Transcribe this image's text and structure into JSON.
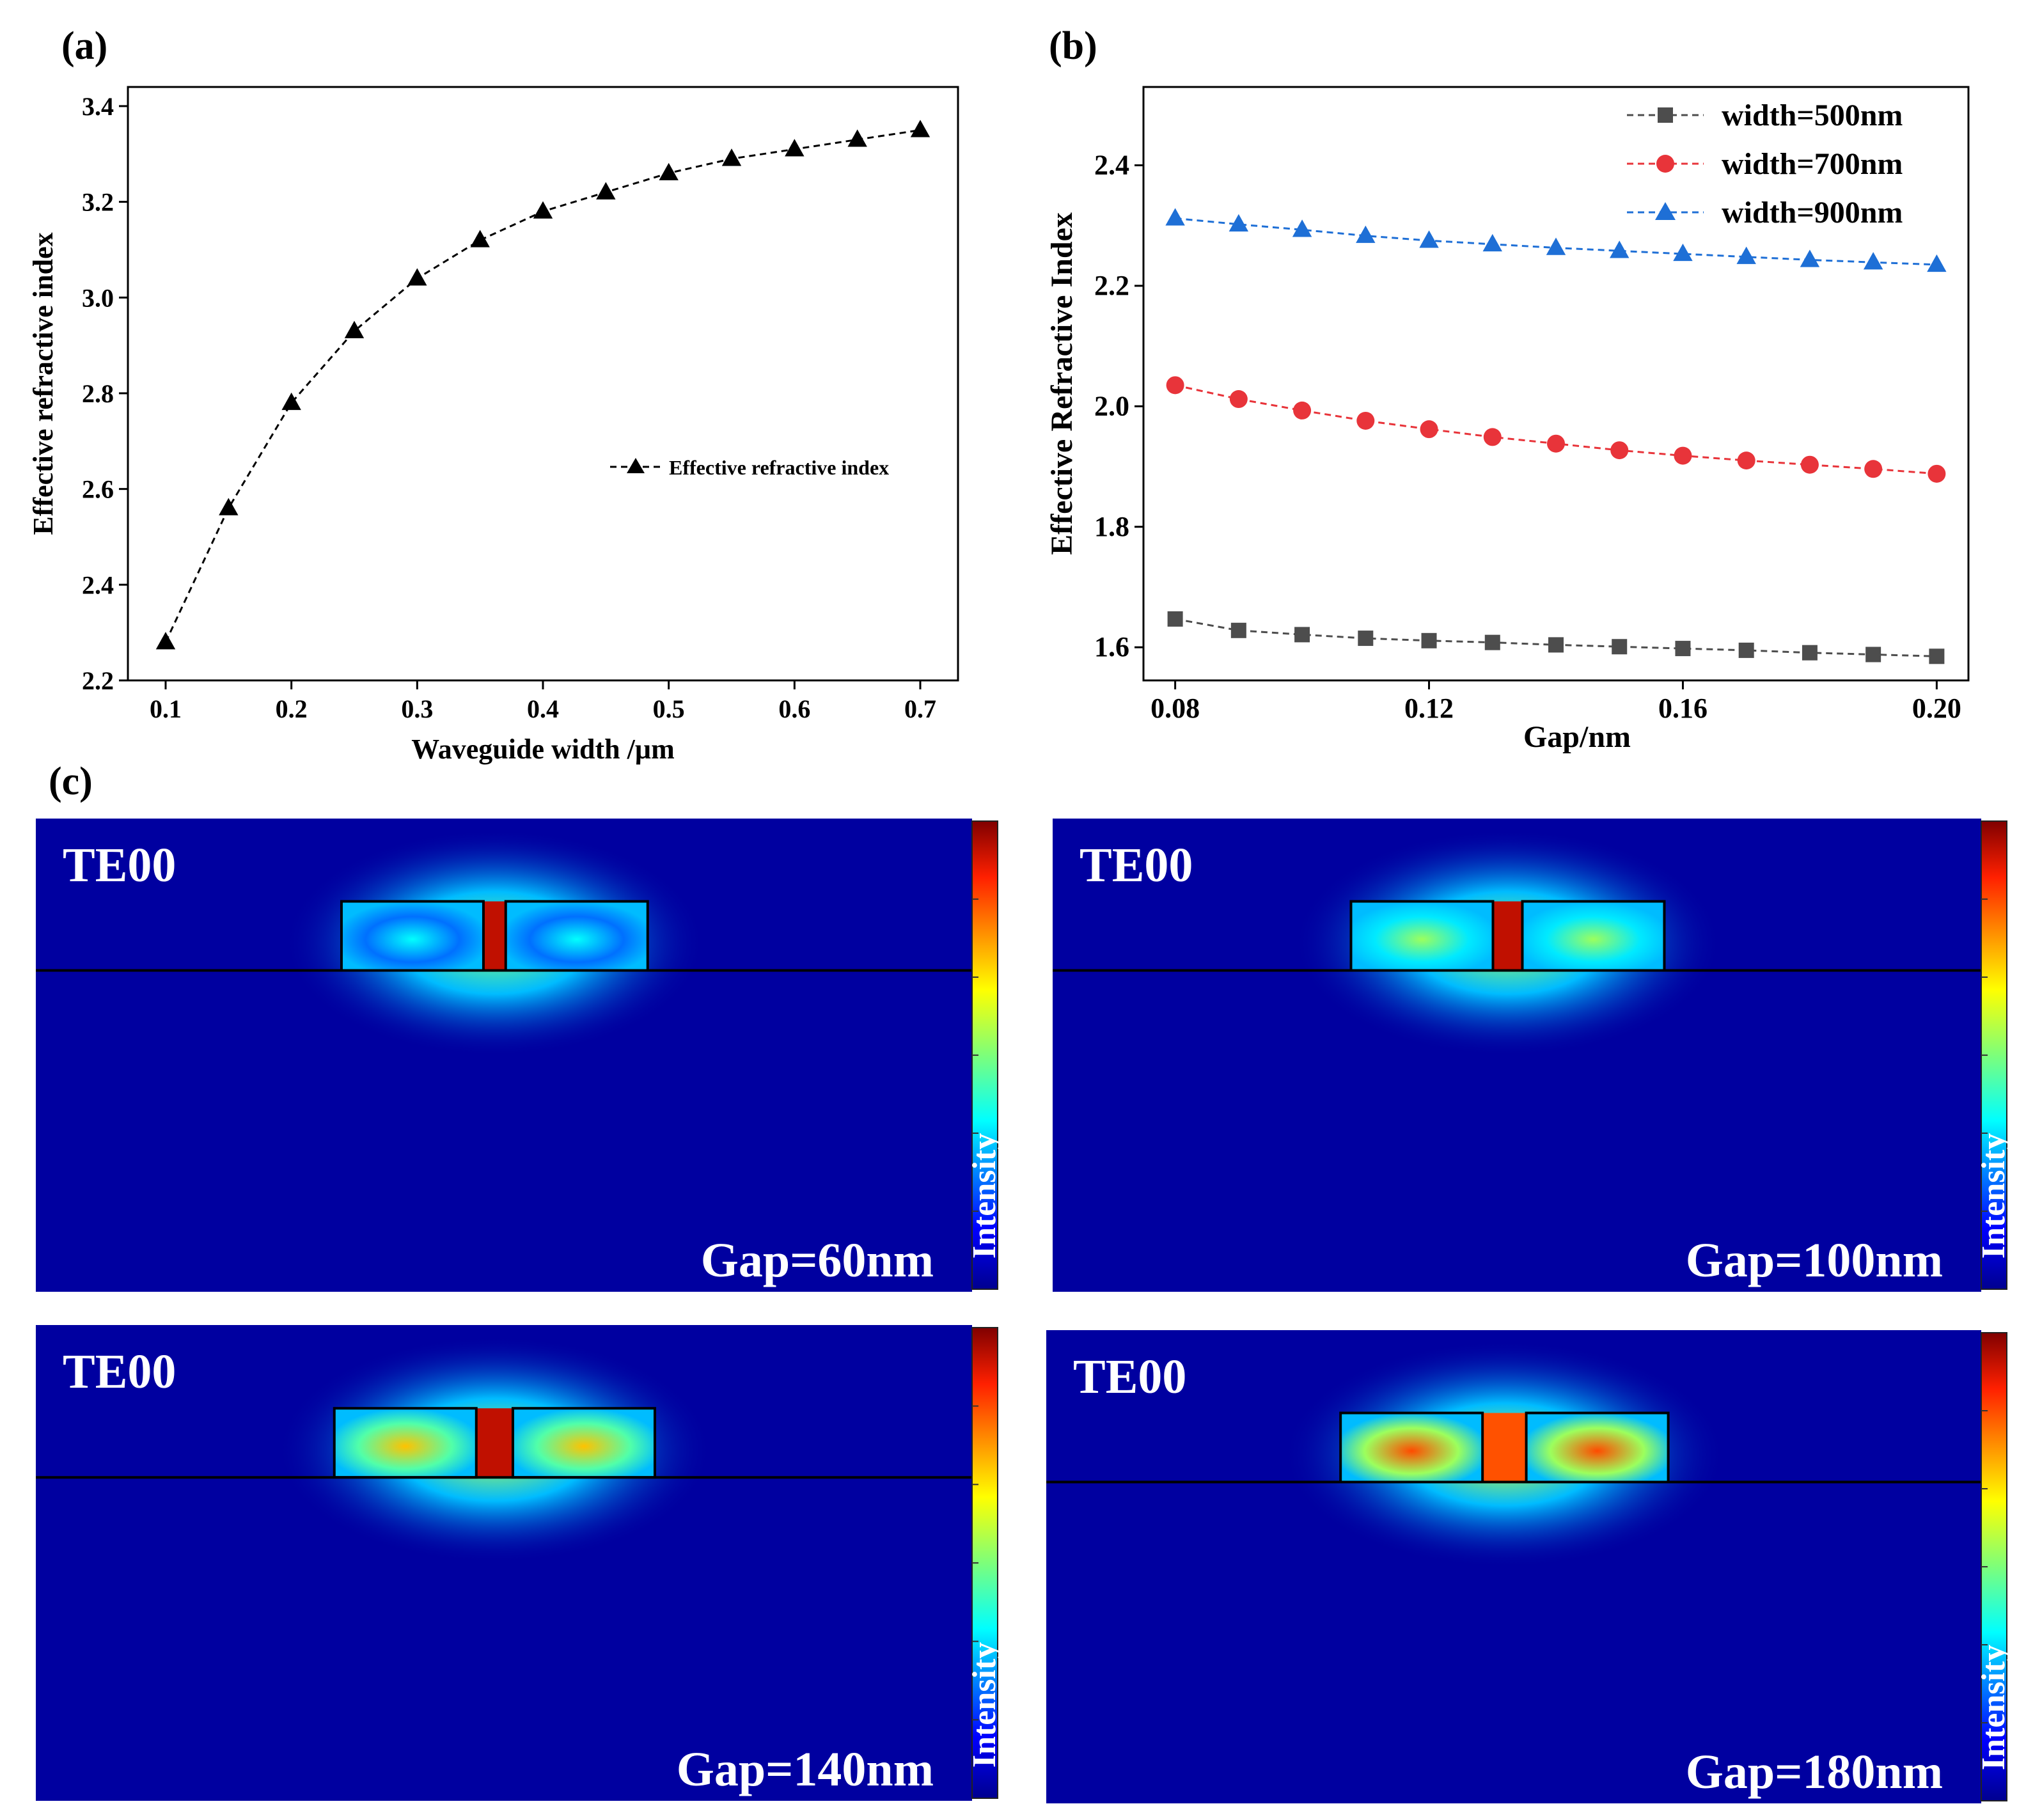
{
  "panel_labels": {
    "a": "(a)",
    "b": "(b)",
    "c": "(c)"
  },
  "colors": {
    "black": "#000000",
    "gray": "#4d4d4d",
    "red": "#e8343a",
    "blue": "#1e6fd6",
    "navy": "#0a0f9c"
  },
  "chart_data": [
    {
      "type": "line",
      "panel": "a",
      "xlabel": "Waveguide width /µm",
      "ylabel": "Effective refractive index",
      "xlim": [
        0.07,
        0.73
      ],
      "ylim": [
        2.2,
        3.44
      ],
      "xticks": [
        0.1,
        0.2,
        0.3,
        0.4,
        0.5,
        0.6,
        0.7
      ],
      "xtick_labels": [
        "0.1",
        "0.2",
        "0.3",
        "0.4",
        "0.5",
        "0.6",
        "0.7"
      ],
      "yticks": [
        2.2,
        2.4,
        2.6,
        2.8,
        3.0,
        3.2,
        3.4
      ],
      "ytick_labels": [
        "2.2",
        "2.4",
        "2.6",
        "2.8",
        "3.0",
        "3.2",
        "3.4"
      ],
      "legend_position": "center-right",
      "series": [
        {
          "name": "Effective refractive index",
          "marker": "triangle",
          "color": "#000000",
          "x": [
            0.1,
            0.15,
            0.2,
            0.25,
            0.3,
            0.35,
            0.4,
            0.45,
            0.5,
            0.55,
            0.6,
            0.65,
            0.7
          ],
          "y": [
            2.28,
            2.56,
            2.78,
            2.93,
            3.04,
            3.12,
            3.18,
            3.22,
            3.26,
            3.29,
            3.31,
            3.33,
            3.35
          ]
        }
      ]
    },
    {
      "type": "line",
      "panel": "b",
      "xlabel": "Gap/nm",
      "ylabel": "Effective Refractive Index",
      "xlim": [
        0.075,
        0.205
      ],
      "ylim": [
        1.545,
        2.53
      ],
      "xticks": [
        0.08,
        0.12,
        0.16,
        0.2
      ],
      "xtick_labels": [
        "0.08",
        "0.12",
        "0.16",
        "0.20"
      ],
      "yticks": [
        1.6,
        1.8,
        2.0,
        2.2,
        2.4
      ],
      "ytick_labels": [
        "1.6",
        "1.8",
        "2.0",
        "2.2",
        "2.4"
      ],
      "legend_position": "top-right",
      "series": [
        {
          "name": "width=500nm",
          "marker": "square",
          "color": "#4d4d4d",
          "x": [
            0.08,
            0.09,
            0.1,
            0.11,
            0.12,
            0.13,
            0.14,
            0.15,
            0.16,
            0.17,
            0.18,
            0.19,
            0.2
          ],
          "y": [
            1.647,
            1.628,
            1.621,
            1.615,
            1.611,
            1.608,
            1.604,
            1.601,
            1.598,
            1.595,
            1.591,
            1.588,
            1.585
          ]
        },
        {
          "name": "width=700nm",
          "marker": "circle",
          "color": "#e8343a",
          "x": [
            0.08,
            0.09,
            0.1,
            0.11,
            0.12,
            0.13,
            0.14,
            0.15,
            0.16,
            0.17,
            0.18,
            0.19,
            0.2
          ],
          "y": [
            2.035,
            2.012,
            1.993,
            1.976,
            1.962,
            1.949,
            1.938,
            1.927,
            1.918,
            1.91,
            1.903,
            1.896,
            1.888
          ]
        },
        {
          "name": "width=900nm",
          "marker": "triangle",
          "color": "#1e6fd6",
          "x": [
            0.08,
            0.09,
            0.1,
            0.11,
            0.12,
            0.13,
            0.14,
            0.15,
            0.16,
            0.17,
            0.18,
            0.19,
            0.2
          ],
          "y": [
            2.312,
            2.302,
            2.293,
            2.283,
            2.275,
            2.269,
            2.263,
            2.258,
            2.253,
            2.248,
            2.243,
            2.239,
            2.235
          ]
        }
      ]
    },
    {
      "type": "heatmap",
      "panel": "c",
      "colorbar_label": "Intensity",
      "maps": [
        {
          "mode": "TE00",
          "gap_label": "Gap=60nm",
          "gap_nm": 60,
          "core_peak": 0.42,
          "gap_peak": 1.0
        },
        {
          "mode": "TE00",
          "gap_label": "Gap=100nm",
          "gap_nm": 100,
          "core_peak": 0.62,
          "gap_peak": 1.0
        },
        {
          "mode": "TE00",
          "gap_label": "Gap=140nm",
          "gap_nm": 140,
          "core_peak": 0.82,
          "gap_peak": 1.0
        },
        {
          "mode": "TE00",
          "gap_label": "Gap=180nm",
          "gap_nm": 180,
          "core_peak": 0.97,
          "gap_peak": 0.88
        }
      ]
    }
  ]
}
